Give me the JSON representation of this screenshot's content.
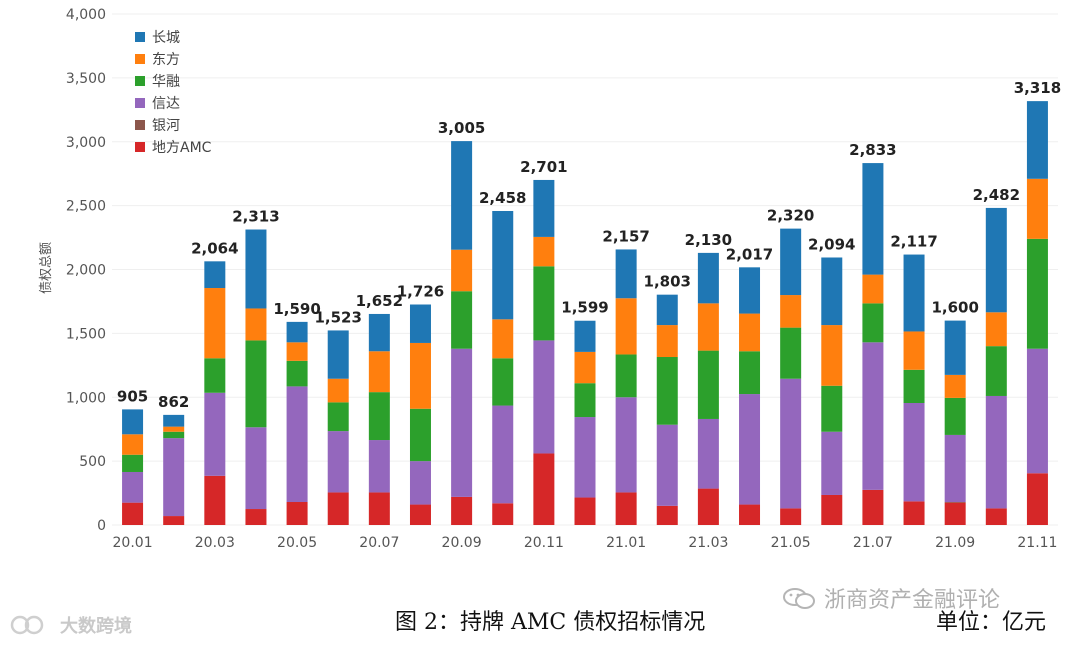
{
  "chart_data": {
    "type": "bar",
    "stacked": true,
    "ylabel": "债权总额",
    "ylim": [
      0,
      4000
    ],
    "yticks": [
      0,
      500,
      1000,
      1500,
      2000,
      2500,
      3000,
      3500,
      4000
    ],
    "ytick_labels": [
      "0",
      "500",
      "1,000",
      "1,500",
      "2,000",
      "2,500",
      "3,000",
      "3,500",
      "4,000"
    ],
    "categories": [
      "20.01",
      "20.02",
      "20.03",
      "20.04",
      "20.05",
      "20.06",
      "20.07",
      "20.08",
      "20.09",
      "20.10",
      "20.11",
      "20.12",
      "21.01",
      "21.02",
      "21.03",
      "21.04",
      "21.05",
      "21.06",
      "21.07",
      "21.08",
      "21.09",
      "21.10",
      "21.11"
    ],
    "xtick_labels": [
      "20.01",
      "",
      "20.03",
      "",
      "20.05",
      "",
      "20.07",
      "",
      "20.09",
      "",
      "20.11",
      "",
      "21.01",
      "",
      "21.03",
      "",
      "21.05",
      "",
      "21.07",
      "",
      "21.09",
      "",
      "21.11"
    ],
    "totals": [
      905,
      862,
      2064,
      2313,
      1590,
      1523,
      1652,
      1726,
      3005,
      2458,
      2701,
      1599,
      2157,
      1803,
      2130,
      2017,
      2320,
      2094,
      2833,
      2117,
      1600,
      2482,
      3318
    ],
    "total_labels": [
      "905",
      "862",
      "2,064",
      "2,313",
      "1,590",
      "1,523",
      "1,652",
      "1,726",
      "3,005",
      "2,458",
      "2,701",
      "1,599",
      "2,157",
      "1,803",
      "2,130",
      "2,017",
      "2,320",
      "2,094",
      "2,833",
      "2,117",
      "1,600",
      "2,482",
      "3,318"
    ],
    "legend_position": "top-left",
    "series": [
      {
        "name": "地方AMC",
        "color": "#d62728",
        "values": [
          175,
          70,
          385,
          125,
          180,
          255,
          255,
          160,
          220,
          170,
          560,
          215,
          255,
          150,
          285,
          160,
          130,
          235,
          275,
          185,
          175,
          130,
          405
        ]
      },
      {
        "name": "银河",
        "color": "#8c564b",
        "values": [
          0,
          0,
          0,
          0,
          0,
          0,
          0,
          0,
          0,
          0,
          0,
          0,
          0,
          0,
          0,
          0,
          0,
          0,
          0,
          0,
          5,
          0,
          0
        ]
      },
      {
        "name": "信达",
        "color": "#9467bd",
        "values": [
          240,
          610,
          650,
          640,
          905,
          480,
          410,
          340,
          1160,
          765,
          885,
          630,
          745,
          635,
          545,
          865,
          1015,
          495,
          1155,
          770,
          525,
          880,
          975
        ]
      },
      {
        "name": "华融",
        "color": "#2ca02c",
        "values": [
          135,
          50,
          270,
          680,
          200,
          225,
          375,
          410,
          450,
          370,
          580,
          265,
          335,
          530,
          535,
          335,
          400,
          360,
          305,
          260,
          290,
          390,
          860
        ]
      },
      {
        "name": "东方",
        "color": "#ff7f0e",
        "values": [
          160,
          40,
          550,
          250,
          145,
          185,
          320,
          515,
          325,
          305,
          230,
          245,
          440,
          250,
          370,
          295,
          255,
          475,
          225,
          300,
          180,
          265,
          470
        ]
      },
      {
        "name": "长城",
        "color": "#1f77b4",
        "values": [
          195,
          92,
          209,
          618,
          160,
          378,
          292,
          301,
          850,
          848,
          446,
          244,
          382,
          238,
          395,
          362,
          520,
          529,
          873,
          602,
          425,
          817,
          608
        ]
      }
    ],
    "legend_order": [
      "长城",
      "东方",
      "华融",
      "信达",
      "银河",
      "地方AMC"
    ]
  },
  "caption": "图 2：持牌 AMC 债权招标情况",
  "unit_label": "单位：亿元",
  "watermark_left": "大数跨境",
  "watermark_right": "浙商资产金融评论"
}
